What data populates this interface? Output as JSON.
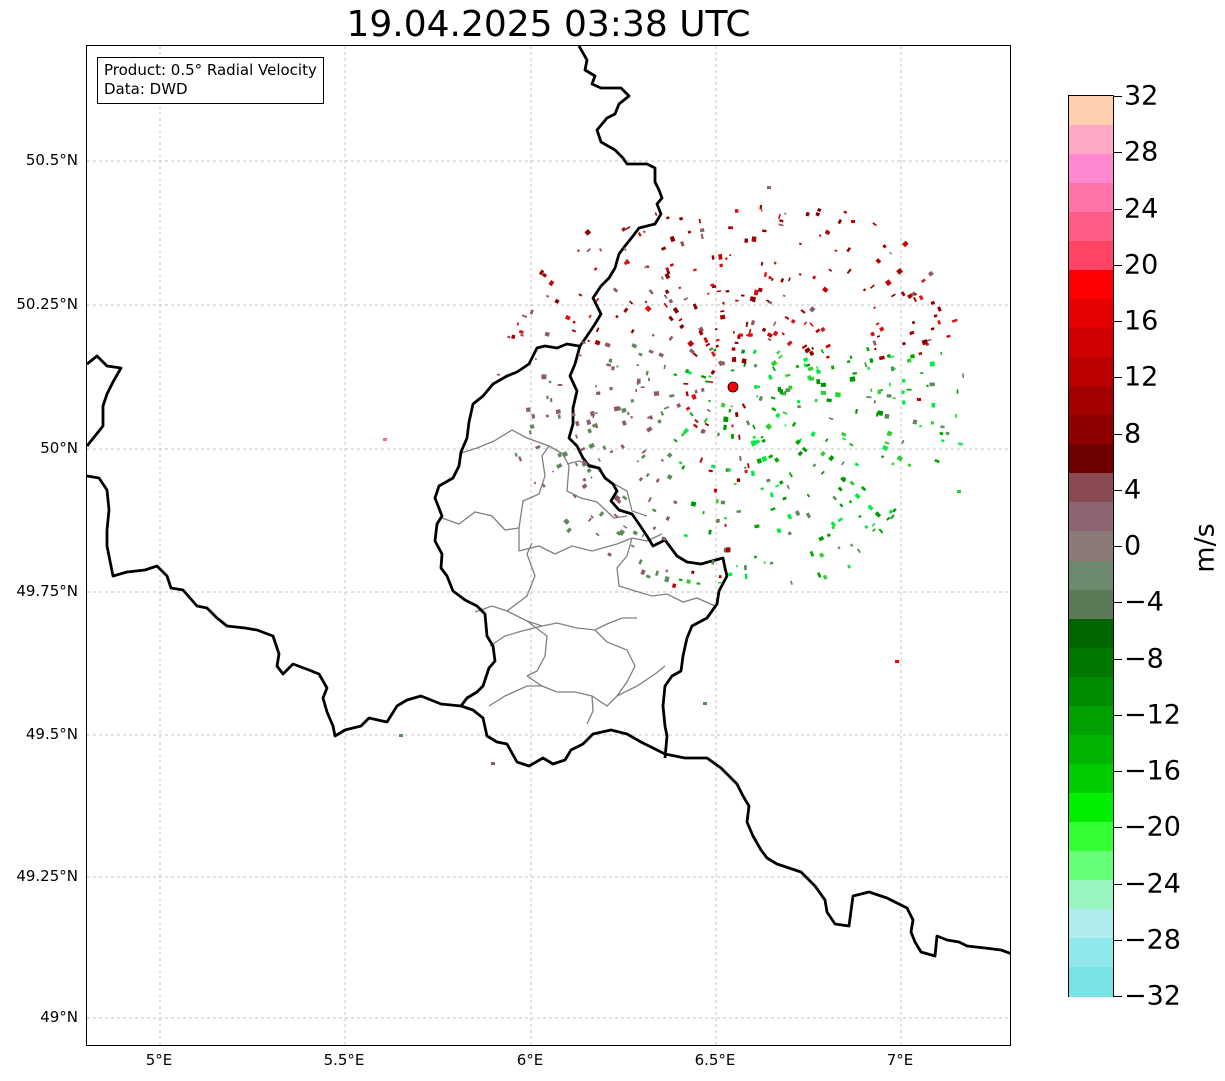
{
  "title": "19.04.2025 03:38 UTC",
  "info": {
    "product": "Product: 0.5° Radial Velocity",
    "data": "Data: DWD"
  },
  "axes": {
    "lat_labels": [
      "50.5°N",
      "50.25°N",
      "50°N",
      "49.75°N",
      "49.5°N",
      "49.25°N",
      "49°N"
    ],
    "lon_labels": [
      "5°E",
      "5.5°E",
      "6°E",
      "6.5°E",
      "7°E"
    ]
  },
  "colorbar": {
    "unit": "m/s",
    "tick_labels": [
      "32",
      "28",
      "24",
      "20",
      "16",
      "12",
      "8",
      "4",
      "0",
      "−4",
      "−8",
      "−12",
      "−16",
      "−20",
      "−24",
      "−28",
      "−32"
    ],
    "colors": [
      "#ffd0b0",
      "#ffa8c8",
      "#ff88d0",
      "#ff74a8",
      "#ff5c88",
      "#ff4466",
      "#ff0000",
      "#e60000",
      "#d10000",
      "#bb0000",
      "#a50000",
      "#8c0000",
      "#700000",
      "#8a4a52",
      "#8e6470",
      "#8c7a78",
      "#6e8a6e",
      "#5a7a58",
      "#006600",
      "#007800",
      "#008c00",
      "#00a000",
      "#00b400",
      "#00cc00",
      "#00ee00",
      "#33ff33",
      "#66ff77",
      "#99f5c0",
      "#b0ecec",
      "#90e8ec",
      "#78e2e6"
    ]
  },
  "radar_site": {
    "lat": 50.11,
    "lon": 6.55,
    "color": "#ff0000"
  },
  "palette": {
    "map_border": "#000000",
    "admin_border": "#808080",
    "grid": "#b0b0b0",
    "inbound": [
      "#00aa00",
      "#009900",
      "#33cc33",
      "#00ee44",
      "#5c8a58"
    ],
    "outbound": [
      "#cc0000",
      "#aa0000",
      "#dd1111",
      "#8c0000",
      "#8e5a66"
    ]
  }
}
